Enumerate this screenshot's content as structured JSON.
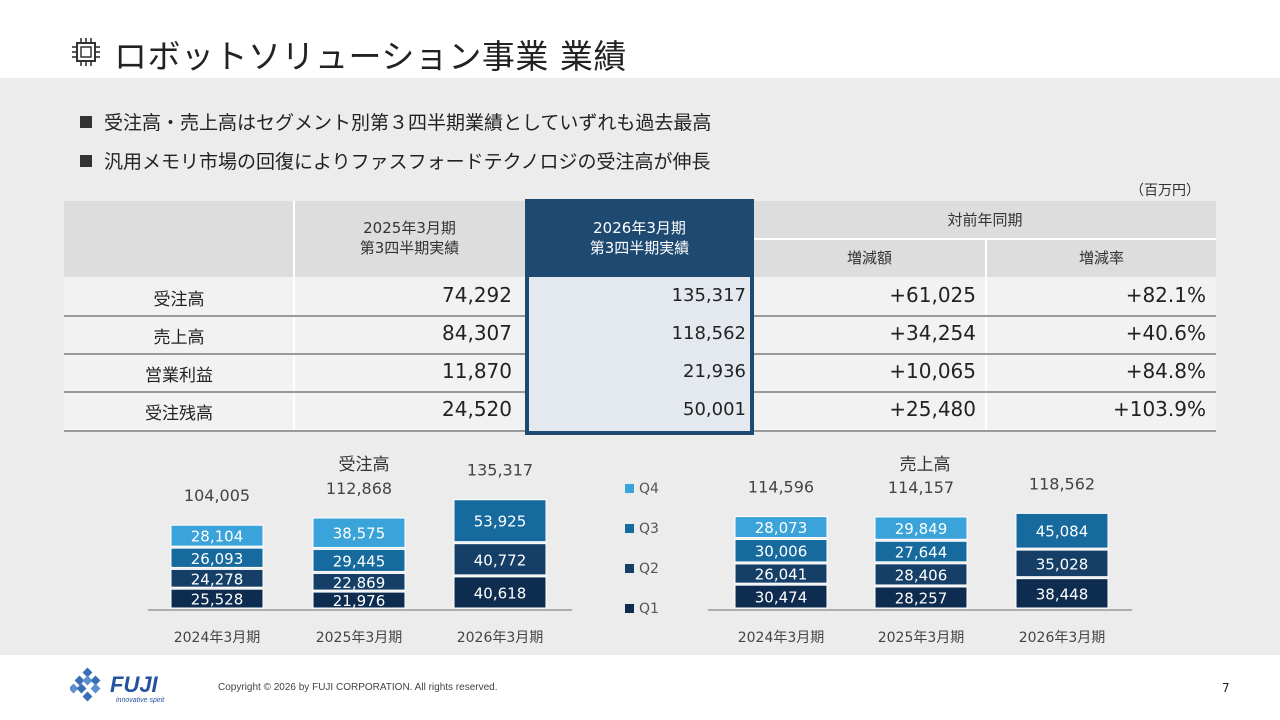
{
  "title": "ロボットソリューション事業 業績",
  "bullets": [
    "受注高・売上高はセグメント別第３四半期業績としていずれも過去最高",
    "汎用メモリ市場の回復によりファスフォードテクノロジの受注高が伸長"
  ],
  "unit": "（百万円）",
  "table": {
    "col1_header": "2025年3月期\n第3四半期実績",
    "col2_header": "2026年3月期\n第3四半期実績",
    "yoy_header": "対前年同期",
    "change_header": "増減額",
    "rate_header": "増減率",
    "rows": [
      {
        "label": "受注高",
        "prev": "74,292",
        "curr": "135,317",
        "change": "+61,025",
        "rate": "+82.1%"
      },
      {
        "label": "売上高",
        "prev": "84,307",
        "curr": "118,562",
        "change": "+34,254",
        "rate": "+40.6%"
      },
      {
        "label": "営業利益",
        "prev": "11,870",
        "curr": "21,936",
        "change": "+10,065",
        "rate": "+84.8%"
      },
      {
        "label": "受注残高",
        "prev": "24,520",
        "curr": "50,001",
        "change": "+25,480",
        "rate": "+103.9%"
      }
    ]
  },
  "colors": {
    "q1": "#0d2c4f",
    "q2": "#163f68",
    "q3": "#166a9e",
    "q4": "#3aa3d9",
    "highlight": "#1e4a72"
  },
  "chart_data": [
    {
      "type": "bar",
      "stacked": true,
      "title": "受注高",
      "categories": [
        "2024年3月期",
        "2025年3月期",
        "2026年3月期"
      ],
      "series": [
        {
          "name": "Q1",
          "values": [
            25528,
            21976,
            40618
          ]
        },
        {
          "name": "Q2",
          "values": [
            24278,
            22869,
            40772
          ]
        },
        {
          "name": "Q3",
          "values": [
            26093,
            29445,
            53925
          ]
        },
        {
          "name": "Q4",
          "values": [
            28104,
            38575,
            null
          ]
        }
      ],
      "totals": [
        104005,
        112868,
        135317
      ],
      "total_labels": [
        "104,005",
        "112,868",
        "135,317"
      ],
      "value_labels": [
        [
          "25,528",
          "24,278",
          "26,093",
          "28,104"
        ],
        [
          "21,976",
          "22,869",
          "29,445",
          "38,575"
        ],
        [
          "40,618",
          "40,772",
          "53,925",
          ""
        ]
      ]
    },
    {
      "type": "bar",
      "stacked": true,
      "title": "売上高",
      "categories": [
        "2024年3月期",
        "2025年3月期",
        "2026年3月期"
      ],
      "series": [
        {
          "name": "Q1",
          "values": [
            30474,
            28257,
            38448
          ]
        },
        {
          "name": "Q2",
          "values": [
            26041,
            28406,
            35028
          ]
        },
        {
          "name": "Q3",
          "values": [
            30006,
            27644,
            45084
          ]
        },
        {
          "name": "Q4",
          "values": [
            28073,
            29849,
            null
          ]
        }
      ],
      "totals": [
        114596,
        114157,
        118562
      ],
      "total_labels": [
        "114,596",
        "114,157",
        "118,562"
      ],
      "value_labels": [
        [
          "30,474",
          "26,041",
          "30,006",
          "28,073"
        ],
        [
          "28,257",
          "28,406",
          "27,644",
          "29,849"
        ],
        [
          "38,448",
          "35,028",
          "45,084",
          ""
        ]
      ]
    }
  ],
  "legend": [
    "Q4",
    "Q3",
    "Q2",
    "Q1"
  ],
  "footer": {
    "logo_text": "FUJI",
    "logo_tagline": "innovative spirit",
    "copyright": "Copyright © 2026 by FUJI CORPORATION. All rights reserved.",
    "page": "7"
  }
}
